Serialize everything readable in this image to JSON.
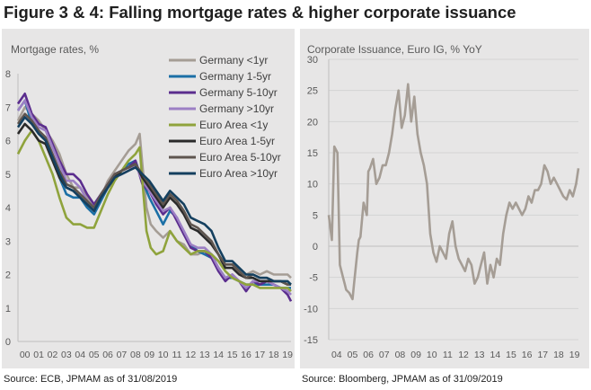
{
  "page": {
    "title": "Figure 3 & 4: Falling mortgage rates & higher corporate issuance",
    "source_left": "Source: ECB, JPMAM as of 31/08/2019",
    "source_right": "Source: Bloomberg, JPMAM as of 31/09/2019"
  },
  "chart_data": [
    {
      "type": "line",
      "title": "Mortgage rates, %",
      "xlabel": "",
      "ylabel": "",
      "x_range": [
        2000.0,
        2019.75
      ],
      "x_ticks": [
        "00",
        "01",
        "02",
        "03",
        "04",
        "05",
        "06",
        "07",
        "08",
        "09",
        "10",
        "11",
        "12",
        "13",
        "14",
        "15",
        "16",
        "17",
        "18",
        "19"
      ],
      "ylim": [
        0,
        8
      ],
      "y_ticks": [
        0,
        1,
        2,
        3,
        4,
        5,
        6,
        7,
        8
      ],
      "grid": false,
      "legend": "top-right",
      "series": [
        {
          "name": "Germany <1yr",
          "color": "#a59d95",
          "x": [
            2000,
            2000.5,
            2001,
            2001.5,
            2002,
            2002.5,
            2003,
            2003.5,
            2004,
            2004.5,
            2005,
            2005.5,
            2006,
            2006.5,
            2007,
            2007.5,
            2008,
            2008.5,
            2008.8,
            2009,
            2009.3,
            2009.6,
            2010,
            2010.5,
            2011,
            2011.5,
            2012,
            2012.5,
            2013,
            2013.5,
            2014,
            2014.5,
            2015,
            2015.5,
            2016,
            2016.5,
            2017,
            2017.5,
            2018,
            2018.5,
            2019,
            2019.5,
            2019.75
          ],
          "y": [
            6.6,
            7.0,
            6.8,
            6.6,
            6.3,
            6.0,
            5.6,
            5.0,
            4.6,
            4.6,
            4.3,
            4.1,
            4.3,
            4.8,
            5.1,
            5.4,
            5.7,
            5.9,
            6.2,
            5.3,
            4.0,
            3.5,
            3.3,
            3.1,
            3.3,
            3.0,
            2.9,
            2.6,
            2.6,
            2.7,
            2.6,
            2.4,
            2.3,
            2.3,
            2.2,
            2.0,
            2.1,
            2.0,
            2.1,
            2.0,
            2.0,
            2.0,
            1.9
          ]
        },
        {
          "name": "Germany 1-5yr",
          "color": "#1b6fa6",
          "x": [
            2000,
            2000.5,
            2001,
            2001.5,
            2002,
            2002.5,
            2003,
            2003.5,
            2004,
            2004.5,
            2005,
            2005.5,
            2006,
            2006.5,
            2007,
            2007.5,
            2008,
            2008.5,
            2009,
            2009.5,
            2010,
            2010.5,
            2011,
            2011.5,
            2012,
            2012.5,
            2013,
            2013.5,
            2014,
            2014.5,
            2015,
            2015.5,
            2016,
            2016.5,
            2017,
            2017.5,
            2018,
            2018.5,
            2019,
            2019.5,
            2019.75
          ],
          "y": [
            6.9,
            7.2,
            6.5,
            6.3,
            6.0,
            5.5,
            4.9,
            4.4,
            4.3,
            4.3,
            4.0,
            3.8,
            4.2,
            4.6,
            4.9,
            5.1,
            5.3,
            5.4,
            4.8,
            4.3,
            3.9,
            3.5,
            3.9,
            3.7,
            3.2,
            2.9,
            2.7,
            2.6,
            2.5,
            2.2,
            1.9,
            1.9,
            1.8,
            1.7,
            1.7,
            1.7,
            1.7,
            1.7,
            1.6,
            1.6,
            1.6
          ]
        },
        {
          "name": "Germany 5-10yr",
          "color": "#5b2d8e",
          "x": [
            2000,
            2000.5,
            2001,
            2001.5,
            2002,
            2002.5,
            2003,
            2003.5,
            2004,
            2004.5,
            2005,
            2005.5,
            2006,
            2006.5,
            2007,
            2007.5,
            2008,
            2008.5,
            2009,
            2009.5,
            2010,
            2010.5,
            2011,
            2011.5,
            2012,
            2012.5,
            2013,
            2013.5,
            2014,
            2014.5,
            2015,
            2015.5,
            2016,
            2016.5,
            2017,
            2017.5,
            2018,
            2018.5,
            2019,
            2019.5,
            2019.75
          ],
          "y": [
            7.1,
            7.4,
            6.8,
            6.5,
            6.4,
            5.9,
            5.4,
            5.0,
            5.0,
            4.8,
            4.4,
            4.1,
            4.4,
            4.7,
            5.0,
            5.1,
            5.2,
            5.4,
            4.7,
            4.5,
            4.1,
            3.8,
            4.0,
            3.6,
            3.2,
            2.8,
            2.7,
            2.7,
            2.5,
            2.1,
            1.8,
            2.0,
            1.8,
            1.5,
            1.8,
            1.7,
            1.8,
            1.7,
            1.6,
            1.4,
            1.2
          ]
        },
        {
          "name": "Germany >10yr",
          "color": "#9c7fc4",
          "x": [
            2000,
            2000.5,
            2001,
            2001.5,
            2002,
            2002.5,
            2003,
            2003.5,
            2004,
            2004.5,
            2005,
            2005.5,
            2006,
            2006.5,
            2007,
            2007.5,
            2008,
            2008.5,
            2009,
            2009.5,
            2010,
            2010.5,
            2011,
            2011.5,
            2012,
            2012.5,
            2013,
            2013.5,
            2014,
            2014.5,
            2015,
            2015.5,
            2016,
            2016.5,
            2017,
            2017.5,
            2018,
            2018.5,
            2019,
            2019.5,
            2019.75
          ],
          "y": [
            6.9,
            7.2,
            6.7,
            6.4,
            6.3,
            5.8,
            5.3,
            4.8,
            4.8,
            4.6,
            4.2,
            4.0,
            4.3,
            4.6,
            4.9,
            5.0,
            5.1,
            5.3,
            4.8,
            4.5,
            4.2,
            3.9,
            4.0,
            3.7,
            3.3,
            2.9,
            2.8,
            2.8,
            2.6,
            2.2,
            1.9,
            2.0,
            1.8,
            1.6,
            1.8,
            1.8,
            1.8,
            1.7,
            1.6,
            1.5,
            1.4
          ]
        },
        {
          "name": "Euro Area <1y",
          "color": "#8fa33c",
          "x": [
            2000,
            2000.5,
            2001,
            2001.5,
            2002,
            2002.5,
            2003,
            2003.5,
            2004,
            2004.5,
            2005,
            2005.5,
            2006,
            2006.5,
            2007,
            2007.5,
            2008,
            2008.5,
            2008.8,
            2009,
            2009.3,
            2009.6,
            2010,
            2010.5,
            2011,
            2011.5,
            2012,
            2012.5,
            2013,
            2013.5,
            2014,
            2014.5,
            2015,
            2015.5,
            2016,
            2016.5,
            2017,
            2017.5,
            2018,
            2018.5,
            2019,
            2019.5,
            2019.75
          ],
          "y": [
            5.6,
            6.0,
            6.3,
            6.0,
            5.5,
            5.0,
            4.3,
            3.7,
            3.5,
            3.5,
            3.4,
            3.4,
            3.9,
            4.4,
            4.8,
            5.1,
            5.4,
            5.6,
            5.8,
            4.8,
            3.3,
            2.8,
            2.6,
            2.7,
            3.3,
            3.0,
            2.8,
            2.6,
            2.7,
            2.7,
            2.6,
            2.4,
            2.1,
            1.9,
            1.8,
            1.7,
            1.7,
            1.6,
            1.6,
            1.6,
            1.6,
            1.6,
            1.5
          ]
        },
        {
          "name": "Euro Area 1-5yr",
          "color": "#2a2a2a",
          "x": [
            2000,
            2000.5,
            2001,
            2001.5,
            2002,
            2002.5,
            2003,
            2003.5,
            2004,
            2004.5,
            2005,
            2005.5,
            2006,
            2006.5,
            2007,
            2007.5,
            2008,
            2008.5,
            2009,
            2009.5,
            2010,
            2010.5,
            2011,
            2011.5,
            2012,
            2012.5,
            2013,
            2013.5,
            2014,
            2014.5,
            2015,
            2015.5,
            2016,
            2016.5,
            2017,
            2017.5,
            2018,
            2018.5,
            2019,
            2019.5,
            2019.75
          ],
          "y": [
            6.2,
            6.5,
            6.3,
            6.0,
            5.9,
            5.4,
            4.9,
            4.6,
            4.5,
            4.3,
            4.1,
            3.9,
            4.3,
            4.6,
            4.9,
            5.1,
            5.2,
            5.3,
            4.9,
            4.6,
            4.3,
            4.0,
            4.3,
            4.1,
            3.8,
            3.4,
            3.3,
            3.1,
            2.9,
            2.6,
            2.2,
            2.2,
            2.0,
            1.9,
            1.9,
            1.8,
            1.8,
            1.8,
            1.8,
            1.7,
            1.7
          ]
        },
        {
          "name": "Euro Area 5-10yr",
          "color": "#5e554f",
          "x": [
            2000,
            2000.5,
            2001,
            2001.5,
            2002,
            2002.5,
            2003,
            2003.5,
            2004,
            2004.5,
            2005,
            2005.5,
            2006,
            2006.5,
            2007,
            2007.5,
            2008,
            2008.5,
            2009,
            2009.5,
            2010,
            2010.5,
            2011,
            2011.5,
            2012,
            2012.5,
            2013,
            2013.5,
            2014,
            2014.5,
            2015,
            2015.5,
            2016,
            2016.5,
            2017,
            2017.5,
            2018,
            2018.5,
            2019,
            2019.5,
            2019.75
          ],
          "y": [
            6.5,
            6.8,
            6.6,
            6.3,
            6.1,
            5.6,
            5.1,
            4.7,
            4.6,
            4.4,
            4.2,
            4.0,
            4.4,
            4.7,
            5.0,
            5.1,
            5.2,
            5.3,
            5.0,
            4.7,
            4.4,
            4.1,
            4.4,
            4.2,
            3.9,
            3.5,
            3.4,
            3.2,
            3.0,
            2.6,
            2.3,
            2.3,
            2.1,
            1.9,
            2.0,
            1.9,
            1.9,
            1.8,
            1.8,
            1.7,
            1.7
          ]
        },
        {
          "name": "Euro Area >10yr",
          "color": "#15405f",
          "x": [
            2000,
            2000.5,
            2001,
            2001.5,
            2002,
            2002.5,
            2003,
            2003.5,
            2004,
            2004.5,
            2005,
            2005.5,
            2006,
            2006.5,
            2007,
            2007.5,
            2008,
            2008.5,
            2009,
            2009.5,
            2010,
            2010.5,
            2011,
            2011.5,
            2012,
            2012.5,
            2013,
            2013.5,
            2014,
            2014.5,
            2015,
            2015.5,
            2016,
            2016.5,
            2017,
            2017.5,
            2018,
            2018.5,
            2019,
            2019.5,
            2019.75
          ],
          "y": [
            6.4,
            6.7,
            6.5,
            6.2,
            6.0,
            5.5,
            5.0,
            4.6,
            4.5,
            4.3,
            4.1,
            3.9,
            4.3,
            4.6,
            4.9,
            5.0,
            5.1,
            5.2,
            5.0,
            4.8,
            4.5,
            4.2,
            4.5,
            4.3,
            4.1,
            3.7,
            3.6,
            3.5,
            3.3,
            2.8,
            2.4,
            2.4,
            2.2,
            2.0,
            2.0,
            1.9,
            1.9,
            1.8,
            1.8,
            1.8,
            1.7
          ]
        }
      ]
    },
    {
      "type": "line",
      "title": "Corporate Issuance, Euro IG, % YoY",
      "xlabel": "",
      "ylabel": "",
      "x_range": [
        2004.0,
        2019.75
      ],
      "x_ticks": [
        "04",
        "05",
        "06",
        "07",
        "08",
        "09",
        "10",
        "11",
        "12",
        "13",
        "14",
        "15",
        "16",
        "17",
        "18",
        "19"
      ],
      "ylim": [
        -15,
        30
      ],
      "y_ticks": [
        -15,
        -10,
        -5,
        0,
        5,
        10,
        15,
        20,
        25,
        30
      ],
      "grid": true,
      "legend": "none",
      "series": [
        {
          "name": "",
          "color": "#a59d95",
          "x": [
            2004,
            2004.2,
            2004.35,
            2004.45,
            2004.55,
            2004.7,
            2004.9,
            2005.0,
            2005.1,
            2005.3,
            2005.5,
            2005.6,
            2005.8,
            2005.9,
            2006.0,
            2006.2,
            2006.4,
            2006.5,
            2006.6,
            2006.8,
            2007.0,
            2007.2,
            2007.4,
            2007.6,
            2007.8,
            2008.0,
            2008.2,
            2008.4,
            2008.6,
            2008.8,
            2009.0,
            2009.2,
            2009.4,
            2009.6,
            2009.8,
            2010.0,
            2010.2,
            2010.4,
            2010.6,
            2010.8,
            2011.0,
            2011.2,
            2011.4,
            2011.6,
            2011.8,
            2012.0,
            2012.2,
            2012.4,
            2012.6,
            2012.8,
            2013.0,
            2013.2,
            2013.4,
            2013.6,
            2013.8,
            2014.0,
            2014.2,
            2014.4,
            2014.6,
            2014.8,
            2015.0,
            2015.2,
            2015.4,
            2015.6,
            2015.8,
            2016.0,
            2016.2,
            2016.4,
            2016.6,
            2016.8,
            2017.0,
            2017.2,
            2017.4,
            2017.6,
            2017.8,
            2018.0,
            2018.2,
            2018.4,
            2018.6,
            2018.8,
            2019.0,
            2019.2,
            2019.4,
            2019.6,
            2019.75
          ],
          "y": [
            5,
            1,
            16,
            15.5,
            15,
            -3,
            -5,
            -6,
            -7,
            -7.5,
            -8.5,
            -6,
            -1,
            1,
            1.5,
            7,
            5,
            12,
            12.5,
            14,
            10,
            11,
            13,
            13,
            15,
            18,
            22,
            25,
            19,
            21,
            26,
            20,
            24,
            18,
            15,
            13,
            10,
            2,
            -1,
            -2.5,
            0,
            -1,
            -2,
            2,
            4,
            0,
            -2,
            -3,
            -4,
            -2,
            -3,
            -6,
            -5,
            -3,
            -1,
            -6,
            -3,
            -5,
            -2,
            -3,
            2,
            5,
            7,
            6,
            7,
            6,
            5,
            6,
            8,
            7,
            9,
            9,
            10,
            13,
            12,
            10,
            11,
            10,
            9,
            8,
            7.5,
            9,
            8,
            10,
            12.5
          ]
        }
      ]
    }
  ]
}
